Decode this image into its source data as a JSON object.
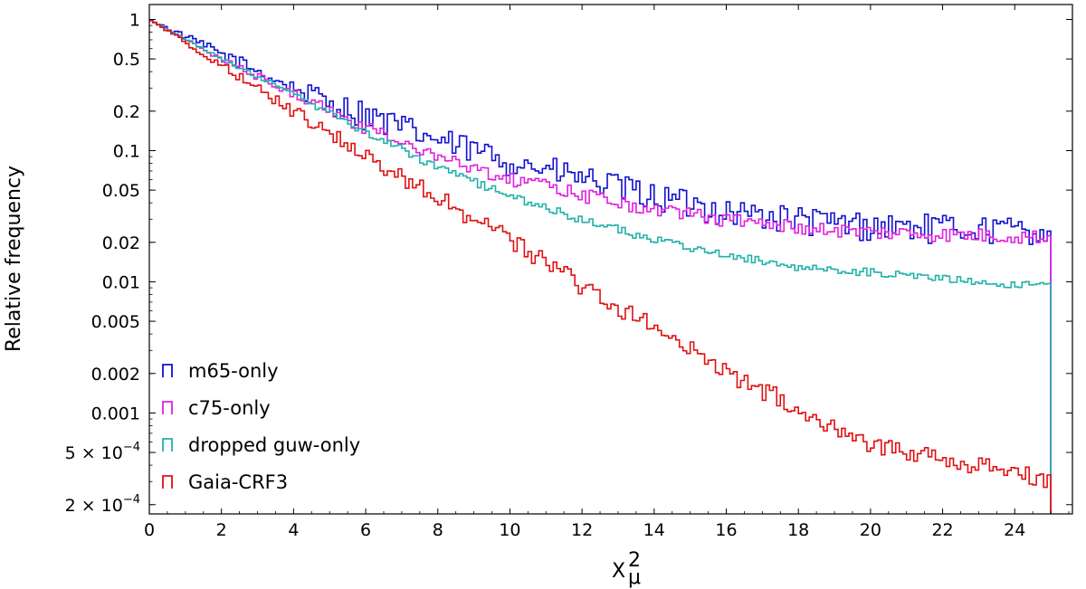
{
  "chart_data": {
    "type": "histogram",
    "xlabel": "X",
    "xlabel_sup": "2",
    "xlabel_sub": "μ",
    "ylabel": "Relative frequency",
    "xlim": [
      0,
      25.6
    ],
    "ylim": [
      0.00017,
      1.3
    ],
    "yscale": "log",
    "bin_width": 0.1,
    "x_range": [
      0,
      25
    ],
    "x_ticks": [
      {
        "value": 0,
        "label": "0"
      },
      {
        "value": 2,
        "label": "2"
      },
      {
        "value": 4,
        "label": "4"
      },
      {
        "value": 6,
        "label": "6"
      },
      {
        "value": 8,
        "label": "8"
      },
      {
        "value": 10,
        "label": "10"
      },
      {
        "value": 12,
        "label": "12"
      },
      {
        "value": 14,
        "label": "14"
      },
      {
        "value": 16,
        "label": "16"
      },
      {
        "value": 18,
        "label": "18"
      },
      {
        "value": 20,
        "label": "20"
      },
      {
        "value": 22,
        "label": "22"
      },
      {
        "value": 24,
        "label": "24"
      }
    ],
    "y_ticks": [
      {
        "value": 1,
        "label": "1"
      },
      {
        "value": 0.5,
        "label": "0.5"
      },
      {
        "value": 0.2,
        "label": "0.2"
      },
      {
        "value": 0.1,
        "label": "0.1"
      },
      {
        "value": 0.05,
        "label": "0.05"
      },
      {
        "value": 0.02,
        "label": "0.02"
      },
      {
        "value": 0.01,
        "label": "0.01"
      },
      {
        "value": 0.005,
        "label": "0.005"
      },
      {
        "value": 0.002,
        "label": "0.002"
      },
      {
        "value": 0.001,
        "label": "0.001"
      },
      {
        "value": 0.0005,
        "label": "5 × 10",
        "exp": "−4"
      },
      {
        "value": 0.0002,
        "label": "2 × 10",
        "exp": "−4"
      }
    ],
    "legend_position": "lower-left",
    "series": [
      {
        "name": "m65-only",
        "color": "#1010d0",
        "keypoints": [
          [
            0,
            1.0
          ],
          [
            2,
            0.55
          ],
          [
            4,
            0.3
          ],
          [
            6,
            0.19
          ],
          [
            8,
            0.12
          ],
          [
            10,
            0.085
          ],
          [
            12,
            0.062
          ],
          [
            14,
            0.045
          ],
          [
            16,
            0.035
          ],
          [
            18,
            0.03
          ],
          [
            20,
            0.027
          ],
          [
            22,
            0.026
          ],
          [
            25,
            0.025
          ]
        ],
        "noise": 0.18
      },
      {
        "name": "c75-only",
        "color": "#e020e0",
        "keypoints": [
          [
            0,
            1.0
          ],
          [
            2,
            0.5
          ],
          [
            4,
            0.27
          ],
          [
            6,
            0.15
          ],
          [
            8,
            0.09
          ],
          [
            10,
            0.062
          ],
          [
            12,
            0.046
          ],
          [
            14,
            0.036
          ],
          [
            16,
            0.03
          ],
          [
            18,
            0.026
          ],
          [
            20,
            0.024
          ],
          [
            22,
            0.023
          ],
          [
            25,
            0.022
          ]
        ],
        "noise": 0.09
      },
      {
        "name": "dropped guw-only",
        "color": "#20b2aa",
        "keypoints": [
          [
            0,
            1.0
          ],
          [
            2,
            0.5
          ],
          [
            4,
            0.27
          ],
          [
            6,
            0.14
          ],
          [
            8,
            0.075
          ],
          [
            10,
            0.045
          ],
          [
            12,
            0.03
          ],
          [
            14,
            0.021
          ],
          [
            16,
            0.016
          ],
          [
            18,
            0.013
          ],
          [
            20,
            0.0118
          ],
          [
            22,
            0.0105
          ],
          [
            25,
            0.0092
          ]
        ],
        "noise": 0.05
      },
      {
        "name": "Gaia-CRF3",
        "color": "#e01010",
        "keypoints": [
          [
            0,
            1.0
          ],
          [
            2,
            0.45
          ],
          [
            4,
            0.2
          ],
          [
            6,
            0.093
          ],
          [
            8,
            0.044
          ],
          [
            10,
            0.021
          ],
          [
            12,
            0.0095
          ],
          [
            14,
            0.0045
          ],
          [
            16,
            0.0021
          ],
          [
            18,
            0.0011
          ],
          [
            20,
            0.0006
          ],
          [
            22,
            0.00044
          ],
          [
            24,
            0.00036
          ],
          [
            25,
            0.00032
          ]
        ],
        "noise": 0.12
      }
    ]
  }
}
